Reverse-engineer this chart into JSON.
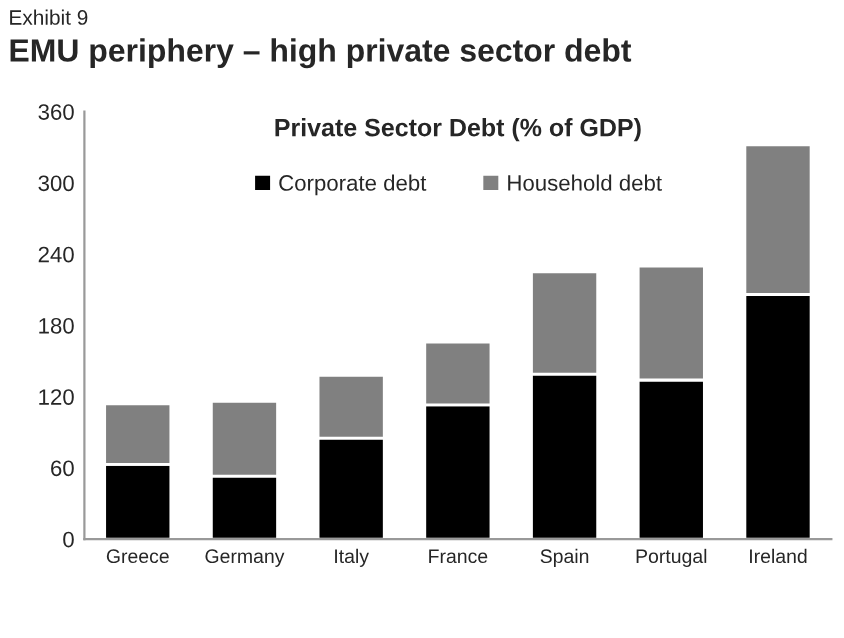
{
  "chart_data": {
    "type": "bar",
    "title": "EMU periphery – high private sector debt",
    "subtitle": "Private Sector Debt (% of GDP)",
    "annotations": [
      "Exhibit 9"
    ],
    "categories": [
      "Greece",
      "Germany",
      "Italy",
      "France",
      "Spain",
      "Portugal",
      "Ireland"
    ],
    "stacked": true,
    "series": [
      {
        "name": "Corporate debt",
        "color": "#000000",
        "values": [
          63,
          53,
          85,
          113,
          139,
          134,
          206
        ]
      },
      {
        "name": "Household debt",
        "color": "#808080",
        "values": [
          51,
          63,
          53,
          53,
          86,
          96,
          126
        ]
      }
    ],
    "ylim": [
      0,
      360
    ],
    "yticks": [
      0,
      60,
      120,
      180,
      240,
      300,
      360
    ],
    "grid": false,
    "legend": "top"
  }
}
